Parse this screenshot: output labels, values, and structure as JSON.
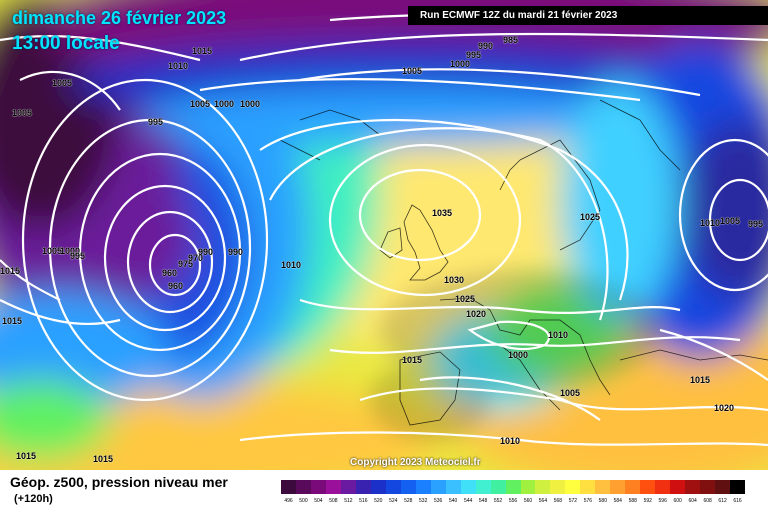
{
  "header": {
    "date": "dimanche 26 février 2023",
    "time": "13:00 locale",
    "run": "Run ECMWF 12Z du mardi 21 février 2023"
  },
  "footer": {
    "title": "Géop. z500, pression niveau mer",
    "forecast_hour": "(+120h)",
    "copyright": "Copyright 2023 Meteociel.fr"
  },
  "legend": {
    "values": [
      "496",
      "500",
      "504",
      "508",
      "512",
      "516",
      "520",
      "524",
      "528",
      "532",
      "536",
      "540",
      "544",
      "548",
      "552",
      "556",
      "560",
      "564",
      "568",
      "572",
      "576",
      "580",
      "584",
      "588",
      "592",
      "596",
      "600",
      "604",
      "608",
      "612",
      "616"
    ],
    "colors": [
      "#3c0a3c",
      "#5a0a5a",
      "#7a0a7a",
      "#9a109a",
      "#6a1aa0",
      "#3a22b0",
      "#1a30c8",
      "#1446e0",
      "#1460f0",
      "#1a80ff",
      "#2aa0ff",
      "#3ac0ff",
      "#40e0f8",
      "#40f0d0",
      "#40f0a0",
      "#60f060",
      "#a0f040",
      "#d0f040",
      "#f0f040",
      "#ffff40",
      "#ffe040",
      "#ffc040",
      "#ffa030",
      "#ff8020",
      "#ff5010",
      "#f03010",
      "#d01010",
      "#a01010",
      "#801010",
      "#601010",
      "#000000"
    ]
  },
  "isobar_labels": [
    "1015",
    "1010",
    "1005",
    "1005",
    "995",
    "1005",
    "1000",
    "1000",
    "990",
    "985",
    "995",
    "1000",
    "1005",
    "1005",
    "1000",
    "995",
    "975",
    "970",
    "990",
    "990",
    "965",
    "960",
    "960",
    "1010",
    "1035",
    "1030",
    "1025",
    "1020",
    "1025",
    "1010",
    "1000",
    "1015",
    "1005",
    "1010",
    "1005",
    "995",
    "1015",
    "1015",
    "1015",
    "1015",
    "1015",
    "1020",
    "1010",
    "1015"
  ]
}
